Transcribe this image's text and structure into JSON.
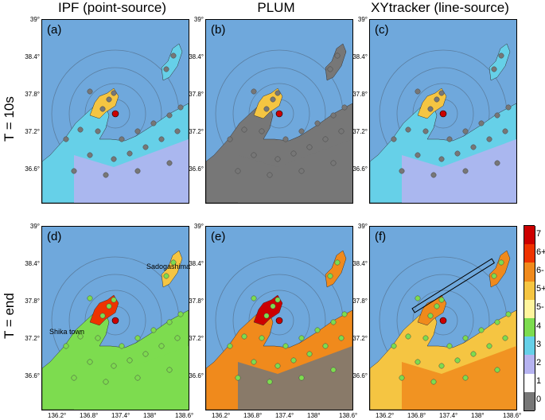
{
  "columns": [
    "IPF (point-source)",
    "PLUM",
    "XYtracker (line-source)"
  ],
  "rows": [
    "T = 10s",
    "T = end"
  ],
  "panels": [
    "(a)",
    "(b)",
    "(c)",
    "(d)",
    "(e)",
    "(f)"
  ],
  "lat_ticks": [
    "39°",
    "38.4°",
    "37.8°",
    "37.2°",
    "36.6°"
  ],
  "lon_ticks": [
    "136.2°",
    "136.8°",
    "137.4°",
    "138°",
    "138.6°"
  ],
  "annotations": {
    "sadogashima": "Sadogashima",
    "shika": "Shika town"
  },
  "colorbar": {
    "labels": [
      "7",
      "6+",
      "6-",
      "5+",
      "5-",
      "4",
      "3",
      "2",
      "1",
      "0"
    ],
    "colors": [
      "#cc0000",
      "#ee3300",
      "#f08a1c",
      "#f5c542",
      "#fff59d",
      "#7ddc4f",
      "#66d0e8",
      "#b6b3f0",
      "#ffffff",
      "#777777"
    ]
  }
}
